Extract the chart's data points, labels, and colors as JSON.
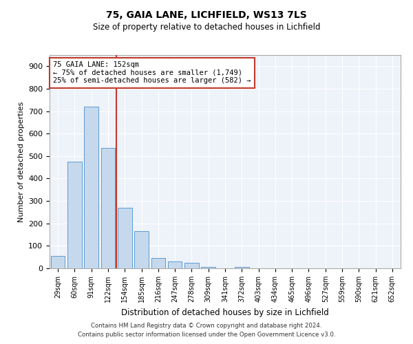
{
  "title1": "75, GAIA LANE, LICHFIELD, WS13 7LS",
  "title2": "Size of property relative to detached houses in Lichfield",
  "xlabel": "Distribution of detached houses by size in Lichfield",
  "ylabel": "Number of detached properties",
  "categories": [
    "29sqm",
    "60sqm",
    "91sqm",
    "122sqm",
    "154sqm",
    "185sqm",
    "216sqm",
    "247sqm",
    "278sqm",
    "309sqm",
    "341sqm",
    "372sqm",
    "403sqm",
    "434sqm",
    "465sqm",
    "496sqm",
    "527sqm",
    "559sqm",
    "590sqm",
    "621sqm",
    "652sqm"
  ],
  "values": [
    55,
    475,
    720,
    535,
    270,
    165,
    45,
    30,
    25,
    5,
    0,
    5,
    0,
    0,
    0,
    0,
    0,
    0,
    0,
    0,
    0
  ],
  "bar_color": "#c6d9ec",
  "bar_edge_color": "#5b9bd5",
  "highlight_line_color": "#c0392b",
  "annotation_text": "75 GAIA LANE: 152sqm\n← 75% of detached houses are smaller (1,749)\n25% of semi-detached houses are larger (582) →",
  "annotation_box_color": "#ffffff",
  "annotation_box_edge_color": "#c0392b",
  "ylim": [
    0,
    950
  ],
  "yticks": [
    0,
    100,
    200,
    300,
    400,
    500,
    600,
    700,
    800,
    900
  ],
  "footnote1": "Contains HM Land Registry data © Crown copyright and database right 2024.",
  "footnote2": "Contains public sector information licensed under the Open Government Licence v3.0.",
  "bg_color": "#eef2f9"
}
